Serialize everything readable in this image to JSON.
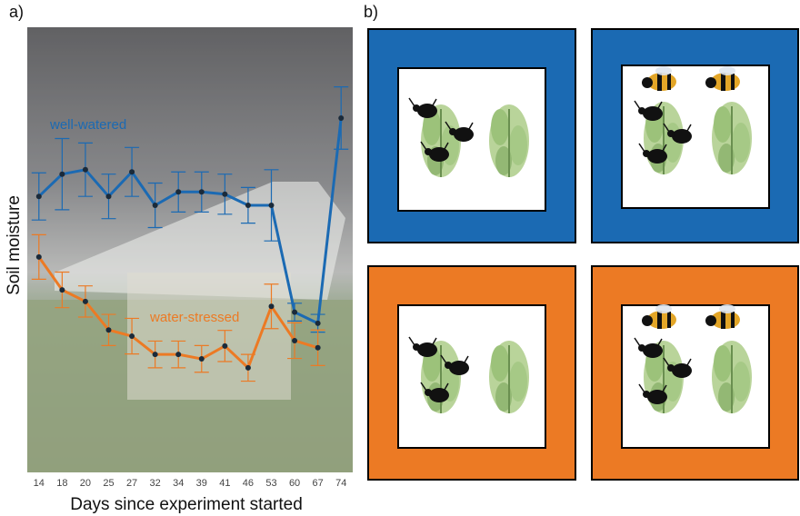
{
  "chart_data": {
    "type": "line",
    "panel_label": "a)",
    "x_label": "Days since experiment started",
    "y_label": "Soil moisture",
    "categories": [
      14,
      18,
      20,
      25,
      27,
      32,
      34,
      39,
      41,
      46,
      53,
      60,
      67,
      74
    ],
    "ylim": [
      0,
      100
    ],
    "series": [
      {
        "name": "well-watered",
        "color": "#1b6ab3",
        "values": [
          62,
          67,
          68,
          62,
          67.5,
          60,
          63,
          63,
          62.5,
          60,
          60,
          36,
          33.5,
          79.6
        ],
        "errors": [
          5.3,
          8,
          6,
          5,
          5.5,
          5,
          4.5,
          4.5,
          4.5,
          4,
          8,
          2,
          2,
          7
        ]
      },
      {
        "name": "water-stressed",
        "color": "#ec7a24",
        "values": [
          48.4,
          41,
          38.4,
          32,
          30.6,
          26.5,
          26.5,
          25.5,
          28.4,
          23.5,
          37.3,
          29.6,
          28,
          null
        ],
        "errors": [
          5,
          4,
          3.5,
          3.5,
          4,
          3,
          3,
          3,
          3.5,
          3,
          5,
          4,
          4,
          null
        ]
      }
    ]
  },
  "panel_b": {
    "label": "b)"
  }
}
